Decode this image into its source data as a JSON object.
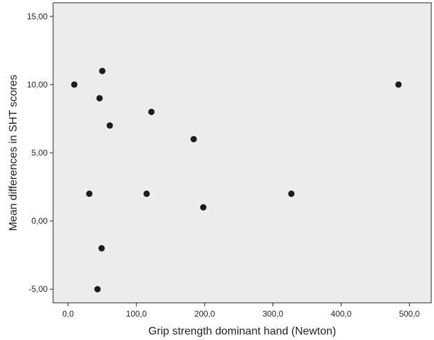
{
  "chart_data": {
    "type": "scatter",
    "xlabel": "Grip strength dominant hand (Newton)",
    "ylabel": "Mean differences in SHT scores",
    "xlim": [
      -22,
      532
    ],
    "ylim": [
      -6,
      16
    ],
    "x_ticks": [
      0,
      100,
      200,
      300,
      400,
      500
    ],
    "x_tick_labels": [
      "0,0",
      "100,0",
      "200,0",
      "300,0",
      "400,0",
      "500,0"
    ],
    "y_ticks": [
      -5,
      0,
      5,
      10,
      15
    ],
    "y_tick_labels": [
      "-5,00",
      "0,00",
      "5,00",
      "10,00",
      "15,00"
    ],
    "grid": false,
    "colors": {
      "plot_background": "#ececec",
      "marker": "#1c1c1c",
      "axis": "#222222"
    },
    "points": [
      {
        "x": 9,
        "y": 10
      },
      {
        "x": 50,
        "y": 11
      },
      {
        "x": 46,
        "y": 9
      },
      {
        "x": 122,
        "y": 8
      },
      {
        "x": 61,
        "y": 7
      },
      {
        "x": 184,
        "y": 6
      },
      {
        "x": 31,
        "y": 2
      },
      {
        "x": 115,
        "y": 2
      },
      {
        "x": 198,
        "y": 1
      },
      {
        "x": 327,
        "y": 2
      },
      {
        "x": 484,
        "y": 10
      },
      {
        "x": 49,
        "y": -2
      },
      {
        "x": 43,
        "y": -5
      }
    ]
  }
}
